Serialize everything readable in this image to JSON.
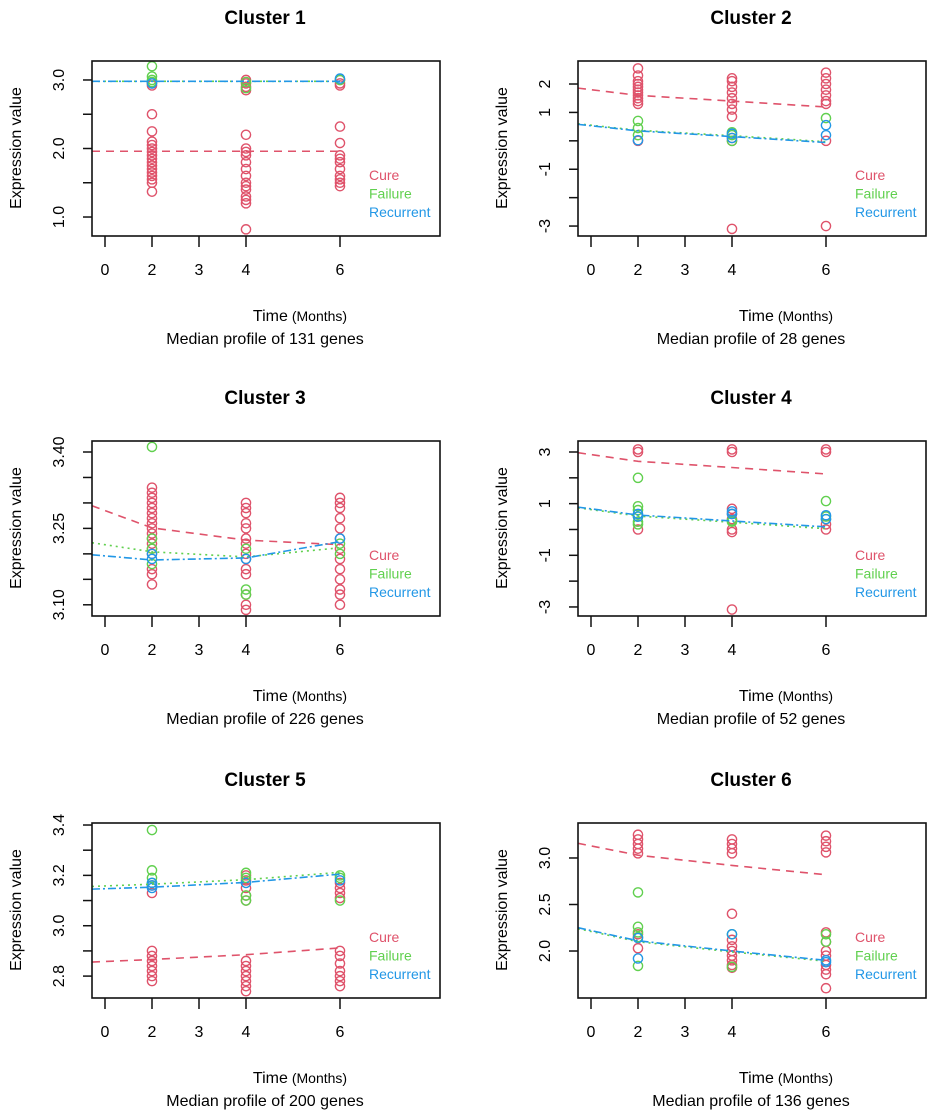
{
  "colors": {
    "Cure": "#DF536B",
    "Failure": "#61D04F",
    "Recurrent": "#2297E6"
  },
  "chart_data": [
    {
      "type": "scatter",
      "title": "Cluster 1",
      "subtitle": "Median profile of 131 genes",
      "xlabel": "Time",
      "xlabel_unit": "(Months)",
      "ylabel": "Expression value",
      "x_ticks": [
        {
          "label": "0",
          "pos": 0
        },
        {
          "label": "2",
          "pos": 1
        },
        {
          "label": "3",
          "pos": 2
        },
        {
          "label": "4",
          "pos": 3
        },
        {
          "label": "6",
          "pos": 5
        }
      ],
      "ylim": [
        0.723,
        3.277
      ],
      "y_ticks": [
        1.0,
        1.5,
        2.0,
        2.5,
        3.0
      ],
      "y_tick_labels": [
        {
          "value": 1.0,
          "label": "1.0"
        },
        {
          "value": 2.0,
          "label": "2.0"
        },
        {
          "value": 3.0,
          "label": "3.0"
        }
      ],
      "legend": [
        "Cure",
        "Failure",
        "Recurrent"
      ],
      "fits": {
        "times": [
          0,
          2,
          4,
          6
        ],
        "Cure": [
          1.96,
          1.96,
          1.96,
          1.96
        ],
        "Failure": [
          2.98,
          2.98,
          2.98,
          2.98
        ],
        "Recurrent": [
          2.98,
          2.98,
          2.98,
          2.98
        ]
      },
      "points": {
        "Cure": {
          "2": [
            2.92,
            2.95,
            2.5,
            2.25,
            2.1,
            2.05,
            2.0,
            1.95,
            1.9,
            1.85,
            1.8,
            1.75,
            1.7,
            1.65,
            1.6,
            1.55,
            1.5,
            1.37
          ],
          "4": [
            3.0,
            2.95,
            2.9,
            2.85,
            2.2,
            2.0,
            1.95,
            1.9,
            1.8,
            1.7,
            1.6,
            1.5,
            1.45,
            1.4,
            1.3,
            1.25,
            1.2,
            0.82
          ],
          "6": [
            3.0,
            2.95,
            2.92,
            2.32,
            2.08,
            1.9,
            1.85,
            1.8,
            1.7,
            1.6,
            1.55,
            1.5,
            1.45
          ]
        },
        "Failure": {
          "2": [
            3.2,
            3.05,
            3.0,
            2.97
          ],
          "4": [
            2.97,
            2.88
          ],
          "6": [
            3.0
          ]
        },
        "Recurrent": {
          "2": [
            2.95
          ],
          "4": [],
          "6": [
            3.02
          ]
        }
      }
    },
    {
      "type": "scatter",
      "title": "Cluster 2",
      "subtitle": "Median profile of 28 genes",
      "xlabel": "Time",
      "xlabel_unit": "(Months)",
      "ylabel": "Expression value",
      "x_ticks": [
        {
          "label": "0",
          "pos": 0
        },
        {
          "label": "2",
          "pos": 1
        },
        {
          "label": "3",
          "pos": 2
        },
        {
          "label": "4",
          "pos": 3
        },
        {
          "label": "6",
          "pos": 5
        }
      ],
      "ylim": [
        -3.35,
        2.81
      ],
      "y_ticks": [
        -3,
        -2,
        -1,
        0,
        1,
        2
      ],
      "y_tick_labels": [
        {
          "value": -3,
          "label": "-3"
        },
        {
          "value": -1,
          "label": "-1"
        },
        {
          "value": 1,
          "label": "1"
        },
        {
          "value": 2,
          "label": "2"
        }
      ],
      "legend": [
        "Cure",
        "Failure",
        "Recurrent"
      ],
      "fits": {
        "times": [
          0,
          2,
          4,
          6
        ],
        "Cure": [
          1.8,
          1.6,
          1.4,
          1.19
        ],
        "Failure": [
          0.55,
          0.37,
          0.18,
          -0.03
        ],
        "Recurrent": [
          0.53,
          0.35,
          0.15,
          -0.06
        ]
      },
      "points": {
        "Cure": {
          "2": [
            2.55,
            2.3,
            2.1,
            2.0,
            1.9,
            1.8,
            1.7,
            1.6,
            1.5,
            1.4,
            1.3,
            0.0
          ],
          "4": [
            2.2,
            2.1,
            1.9,
            1.7,
            1.5,
            1.3,
            1.1,
            0.85,
            0.1,
            0.0,
            -3.1
          ],
          "6": [
            2.4,
            2.2,
            2.0,
            1.8,
            1.6,
            1.4,
            1.3,
            0.0,
            -3.0
          ]
        },
        "Failure": {
          "2": [
            0.7,
            0.45,
            0.2
          ],
          "4": [
            0.3,
            0.2,
            0.0
          ],
          "6": [
            0.8
          ]
        },
        "Recurrent": {
          "2": [
            0.02
          ],
          "4": [
            0.25,
            0.1
          ],
          "6": [
            0.55,
            0.2
          ]
        }
      }
    },
    {
      "type": "scatter",
      "title": "Cluster 3",
      "subtitle": "Median profile of 226 genes",
      "xlabel": "Time",
      "xlabel_unit": "(Months)",
      "ylabel": "Expression value",
      "x_ticks": [
        {
          "label": "0",
          "pos": 0
        },
        {
          "label": "2",
          "pos": 1
        },
        {
          "label": "3",
          "pos": 2
        },
        {
          "label": "4",
          "pos": 3
        },
        {
          "label": "6",
          "pos": 5
        }
      ],
      "ylim": [
        3.078,
        3.4216
      ],
      "y_ticks": [
        3.1,
        3.15,
        3.2,
        3.25,
        3.3,
        3.35,
        3.4
      ],
      "y_tick_labels": [
        {
          "value": 3.1,
          "label": "3.10"
        },
        {
          "value": 3.25,
          "label": "3.25"
        },
        {
          "value": 3.4,
          "label": "3.40"
        }
      ],
      "legend": [
        "Cure",
        "Failure",
        "Recurrent"
      ],
      "fits": {
        "times": [
          0,
          2,
          4,
          6
        ],
        "Cure": [
          3.285,
          3.251,
          3.227,
          3.218
        ],
        "Failure": [
          3.218,
          3.204,
          3.194,
          3.212
        ],
        "Recurrent": [
          3.196,
          3.188,
          3.192,
          3.224
        ]
      },
      "points": {
        "Cure": {
          "2": [
            3.33,
            3.32,
            3.31,
            3.3,
            3.29,
            3.28,
            3.27,
            3.26,
            3.25,
            3.24,
            3.23,
            3.22,
            3.21,
            3.2,
            3.17,
            3.16,
            3.14
          ],
          "4": [
            3.3,
            3.29,
            3.28,
            3.26,
            3.25,
            3.23,
            3.22,
            3.2,
            3.19,
            3.17,
            3.16,
            3.12,
            3.1,
            3.09
          ],
          "6": [
            3.31,
            3.3,
            3.29,
            3.27,
            3.25,
            3.23,
            3.21,
            3.19,
            3.17,
            3.15,
            3.13,
            3.12,
            3.1
          ]
        },
        "Failure": {
          "2": [
            3.41,
            3.23,
            3.21,
            3.18
          ],
          "4": [
            3.21,
            3.13,
            3.12
          ],
          "6": [
            3.22,
            3.2
          ]
        },
        "Recurrent": {
          "2": [
            3.2,
            3.19
          ],
          "4": [
            3.19
          ],
          "6": [
            3.23
          ]
        }
      }
    },
    {
      "type": "scatter",
      "title": "Cluster 4",
      "subtitle": "Median profile of 52 genes",
      "xlabel": "Time",
      "xlabel_unit": "(Months)",
      "ylabel": "Expression value",
      "x_ticks": [
        {
          "label": "0",
          "pos": 0
        },
        {
          "label": "2",
          "pos": 1
        },
        {
          "label": "3",
          "pos": 2
        },
        {
          "label": "4",
          "pos": 3
        },
        {
          "label": "6",
          "pos": 5
        }
      ],
      "ylim": [
        -3.35,
        3.426
      ],
      "y_ticks": [
        -3,
        -2,
        -1,
        0,
        1,
        2,
        3
      ],
      "y_tick_labels": [
        {
          "value": -3,
          "label": "-3"
        },
        {
          "value": -1,
          "label": "-1"
        },
        {
          "value": 1,
          "label": "1"
        },
        {
          "value": 3,
          "label": "3"
        }
      ],
      "legend": [
        "Cure",
        "Failure",
        "Recurrent"
      ],
      "fits": {
        "times": [
          0,
          2,
          4,
          6
        ],
        "Cure": [
          2.9,
          2.64,
          2.4,
          2.15
        ],
        "Failure": [
          0.77,
          0.52,
          0.28,
          0.03
        ],
        "Recurrent": [
          0.8,
          0.56,
          0.33,
          0.1
        ]
      },
      "points": {
        "Cure": {
          "2": [
            3.1,
            3.0,
            0.0
          ],
          "4": [
            3.1,
            3.0,
            0.8,
            0.6,
            0.4,
            0.0,
            -0.1,
            -3.1
          ],
          "6": [
            3.1,
            3.0,
            0.2,
            0.0
          ]
        },
        "Failure": {
          "2": [
            2.0,
            0.9,
            0.75,
            0.5,
            0.3,
            0.2
          ],
          "4": [
            0.35,
            0.3
          ],
          "6": [
            1.1,
            0.5,
            0.4
          ]
        },
        "Recurrent": {
          "2": [
            0.6,
            0.5
          ],
          "4": [
            0.7,
            0.6
          ],
          "6": [
            0.55,
            0.4
          ]
        }
      }
    },
    {
      "type": "scatter",
      "title": "Cluster 5",
      "subtitle": "Median profile of 200 genes",
      "xlabel": "Time",
      "xlabel_unit": "(Months)",
      "ylabel": "Expression value",
      "x_ticks": [
        {
          "label": "0",
          "pos": 0
        },
        {
          "label": "2",
          "pos": 1
        },
        {
          "label": "3",
          "pos": 2
        },
        {
          "label": "4",
          "pos": 3
        },
        {
          "label": "6",
          "pos": 5
        }
      ],
      "ylim": [
        2.713,
        3.408
      ],
      "y_ticks": [
        2.8,
        2.9,
        3.0,
        3.1,
        3.2,
        3.3,
        3.4
      ],
      "y_tick_labels": [
        {
          "value": 2.8,
          "label": "2.8"
        },
        {
          "value": 3.0,
          "label": "3.0"
        },
        {
          "value": 3.2,
          "label": "3.2"
        },
        {
          "value": 3.4,
          "label": "3.4"
        }
      ],
      "legend": [
        "Cure",
        "Failure",
        "Recurrent"
      ],
      "fits": {
        "times": [
          0,
          2,
          4,
          6
        ],
        "Cure": [
          2.858,
          2.866,
          2.885,
          2.912
        ],
        "Failure": [
          3.158,
          3.165,
          3.183,
          3.212
        ],
        "Recurrent": [
          3.147,
          3.153,
          3.172,
          3.205
        ]
      },
      "points": {
        "Cure": {
          "2": [
            3.13,
            3.16,
            2.9,
            2.88,
            2.86,
            2.84,
            2.82,
            2.8,
            2.78
          ],
          "4": [
            3.2,
            3.18,
            3.15,
            3.12,
            3.1,
            2.86,
            2.84,
            2.82,
            2.8,
            2.78,
            2.76,
            2.74
          ],
          "6": [
            3.17,
            3.15,
            3.13,
            3.11,
            2.9,
            2.88,
            2.85,
            2.82,
            2.8,
            2.78,
            2.76
          ]
        },
        "Failure": {
          "2": [
            3.38,
            3.22,
            3.19,
            3.17
          ],
          "4": [
            3.21,
            3.19,
            3.12,
            3.1
          ],
          "6": [
            3.2,
            3.19,
            3.1
          ]
        },
        "Recurrent": {
          "2": [
            3.17,
            3.16,
            3.15
          ],
          "4": [
            3.17
          ],
          "6": [
            3.18
          ]
        }
      }
    },
    {
      "type": "scatter",
      "title": "Cluster 6",
      "subtitle": "Median profile of 136 genes",
      "xlabel": "Time",
      "xlabel_unit": "(Months)",
      "ylabel": "Expression value",
      "x_ticks": [
        {
          "label": "0",
          "pos": 0
        },
        {
          "label": "2",
          "pos": 1
        },
        {
          "label": "3",
          "pos": 2
        },
        {
          "label": "4",
          "pos": 3
        },
        {
          "label": "6",
          "pos": 5
        }
      ],
      "ylim": [
        1.495,
        3.376
      ],
      "y_ticks": [
        2.0,
        2.5,
        3.0
      ],
      "y_tick_labels": [
        {
          "value": 2.0,
          "label": "2.0"
        },
        {
          "value": 2.5,
          "label": "2.5"
        },
        {
          "value": 3.0,
          "label": "3.0"
        }
      ],
      "legend": [
        "Cure",
        "Failure",
        "Recurrent"
      ],
      "fits": {
        "times": [
          0,
          2,
          4,
          6
        ],
        "Cure": [
          3.13,
          3.03,
          2.92,
          2.82
        ],
        "Failure": [
          2.21,
          2.1,
          1.99,
          1.89
        ],
        "Recurrent": [
          2.22,
          2.11,
          2.0,
          1.9
        ]
      },
      "points": {
        "Cure": {
          "2": [
            3.25,
            3.2,
            3.15,
            3.1,
            3.05,
            2.18,
            2.03
          ],
          "4": [
            3.2,
            3.15,
            3.1,
            3.05,
            2.4,
            2.12,
            2.05,
            2.0,
            1.95,
            1.9,
            1.85,
            1.82
          ],
          "6": [
            3.24,
            3.18,
            3.12,
            3.06,
            2.2,
            2.1,
            2.0,
            1.95,
            1.85,
            1.8,
            1.75,
            1.6
          ]
        },
        "Failure": {
          "2": [
            2.63,
            2.26,
            2.2,
            2.15,
            1.84
          ],
          "4": [
            2.18,
            1.83
          ],
          "6": [
            2.18,
            2.1
          ]
        },
        "Recurrent": {
          "2": [
            2.14,
            1.92
          ],
          "4": [
            2.18
          ],
          "6": [
            1.9,
            1.88
          ]
        }
      }
    }
  ]
}
